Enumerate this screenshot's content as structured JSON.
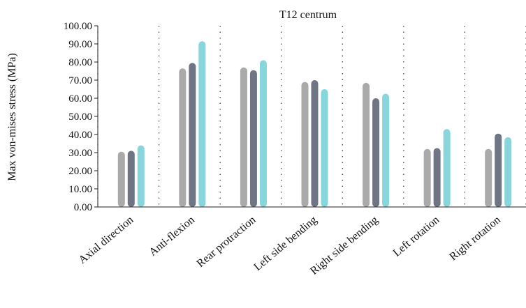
{
  "chart_data": {
    "type": "bar",
    "title": "T12 centrum",
    "xlabel": "",
    "ylabel": "Max von-mises stress (MPa)",
    "ylim": [
      0,
      100
    ],
    "ytick_step": 10,
    "ytick_labels": [
      "0.00",
      "10.00",
      "20.00",
      "30.00",
      "40.00",
      "50.00",
      "60.00",
      "70.00",
      "80.00",
      "90.00",
      "100.00"
    ],
    "categories": [
      "Axial direction",
      "Anti-flexion",
      "Rear protraction",
      "Left side bending",
      "Right side bending",
      "Left rotation",
      "Right rotation"
    ],
    "series": [
      {
        "color": "#aaaaaa",
        "values": [
          30.5,
          76.5,
          77,
          69,
          68.5,
          32,
          32
        ]
      },
      {
        "color": "#6f7585",
        "values": [
          31,
          79.5,
          75.5,
          70,
          60,
          32.5,
          40.5
        ]
      },
      {
        "color": "#86d6dc",
        "values": [
          34,
          91.5,
          81,
          65,
          62.5,
          43,
          38.5
        ]
      }
    ],
    "legend": "none",
    "grid": "vertical dotted separators between categories"
  }
}
